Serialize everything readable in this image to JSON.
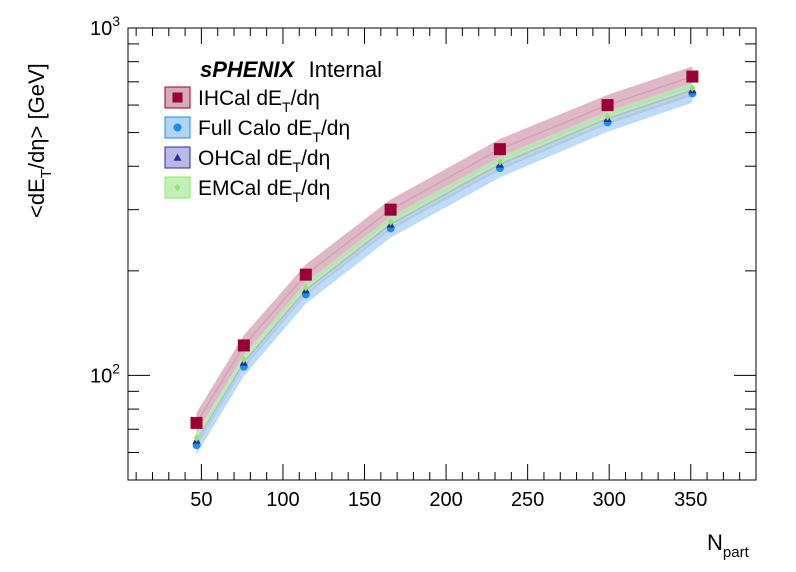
{
  "chart_data": {
    "type": "line",
    "x_axis": {
      "label": "N",
      "label_sub": "part",
      "range": [
        5,
        390
      ],
      "scale": "linear",
      "tick_labels": [
        "50",
        "100",
        "150",
        "200",
        "250",
        "300",
        "350"
      ],
      "ticks": [
        50,
        100,
        150,
        200,
        250,
        300,
        350
      ]
    },
    "y_axis": {
      "label": "<dE",
      "label_sub": "T",
      "label_tail": "/dη> [GeV]",
      "range": [
        50,
        1000
      ],
      "scale": "log",
      "major_ticks": [
        100,
        1000
      ],
      "major_labels": [
        {
          "base": "10",
          "exp": "2"
        },
        {
          "base": "10",
          "exp": "3"
        }
      ]
    },
    "x": [
      47,
      76,
      114,
      166,
      233,
      299,
      351
    ],
    "series": [
      {
        "name": "IHCal dE",
        "name_sub": "T",
        "name_tail": "/dη",
        "color": "#990033",
        "band_color": "#d4a0b4",
        "marker": "square",
        "values": [
          73,
          122,
          195,
          300,
          448,
          600,
          725
        ],
        "band_rel": 0.07
      },
      {
        "name": "Full Calo dE",
        "name_sub": "T",
        "name_tail": "/dη",
        "color": "#1b8fe6",
        "band_color": "#a8cff5",
        "marker": "circle",
        "values": [
          63,
          106,
          171,
          265,
          395,
          535,
          648
        ],
        "band_rel": 0.06
      },
      {
        "name": "OHCal dE",
        "name_sub": "T",
        "name_tail": "/dη",
        "color": "#2a2a9a",
        "band_color": "#b3b3e6",
        "marker": "triangle",
        "values": [
          65,
          109,
          176,
          272,
          405,
          548,
          662
        ],
        "band_rel": 0.035
      },
      {
        "name": "EMCal dE",
        "name_sub": "T",
        "name_tail": "/dη",
        "color": "#8ee66b",
        "band_color": "#b9eeb0",
        "marker": "diamond",
        "values": [
          66,
          111,
          179,
          277,
          412,
          556,
          672
        ],
        "band_rel": 0.035
      }
    ],
    "legend_placement": "top-left",
    "grid": false,
    "annotation": {
      "brand": "sPHENIX",
      "status": "Internal"
    }
  }
}
